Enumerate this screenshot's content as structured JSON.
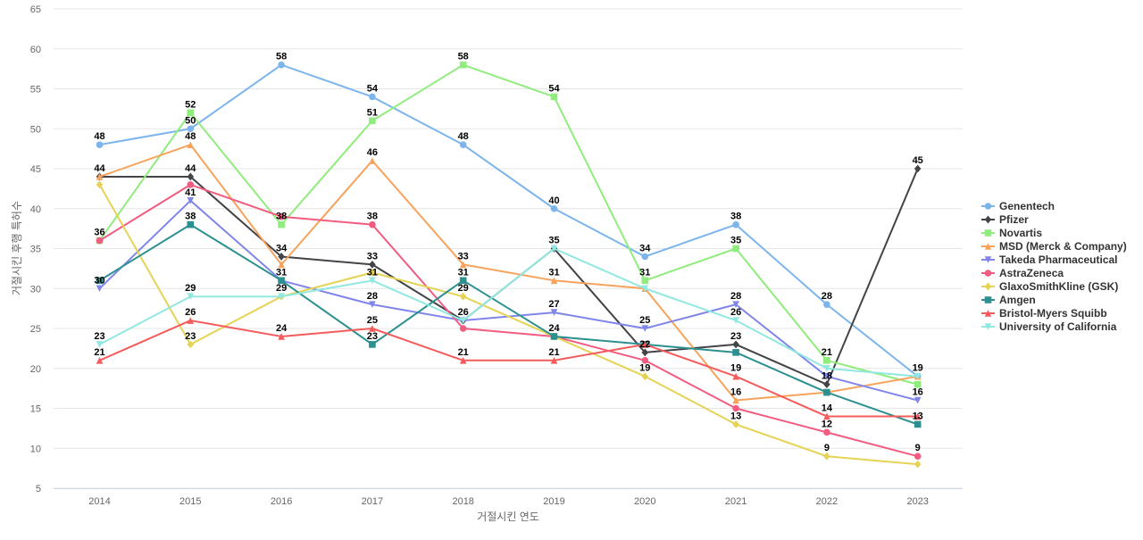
{
  "chart_data": {
    "type": "line",
    "title": "",
    "xlabel": "거절시킨 연도",
    "ylabel": "거절시킨 후행 특허수",
    "x": [
      "2014",
      "2015",
      "2016",
      "2017",
      "2018",
      "2019",
      "2020",
      "2021",
      "2022",
      "2023"
    ],
    "ylim": [
      5,
      65
    ],
    "yticks": [
      5,
      10,
      15,
      20,
      25,
      30,
      35,
      40,
      45,
      50,
      55,
      60,
      65
    ],
    "grid": true,
    "legend_position": "right",
    "series": [
      {
        "name": "Genentech",
        "color": "#7cb5ec",
        "marker": "circle",
        "values": [
          48,
          50,
          58,
          54,
          48,
          40,
          34,
          38,
          28,
          19
        ]
      },
      {
        "name": "Pfizer",
        "color": "#434348",
        "marker": "diamond",
        "values": [
          44,
          44,
          34,
          33,
          26,
          35,
          22,
          23,
          18,
          45
        ]
      },
      {
        "name": "Novartis",
        "color": "#90ed7d",
        "marker": "square",
        "values": [
          36,
          52,
          38,
          51,
          58,
          54,
          31,
          35,
          21,
          18
        ]
      },
      {
        "name": "MSD (Merck & Company)",
        "color": "#f7a35c",
        "marker": "triangle",
        "values": [
          44,
          48,
          33,
          46,
          33,
          31,
          30,
          16,
          17,
          19
        ]
      },
      {
        "name": "Takeda Pharmaceutical",
        "color": "#8085e9",
        "marker": "triangle-down",
        "values": [
          30,
          41,
          31,
          28,
          26,
          27,
          25,
          28,
          19,
          16
        ]
      },
      {
        "name": "AstraZeneca",
        "color": "#f15c80",
        "marker": "circle",
        "values": [
          36,
          43,
          39,
          38,
          25,
          24,
          21,
          15,
          12,
          9
        ]
      },
      {
        "name": "GlaxoSmithKline (GSK)",
        "color": "#e4d354",
        "marker": "diamond",
        "values": [
          43,
          23,
          29,
          32,
          29,
          24,
          19,
          13,
          9,
          8
        ]
      },
      {
        "name": "Amgen",
        "color": "#2b908f",
        "marker": "square",
        "values": [
          31,
          38,
          31,
          23,
          31,
          24,
          23,
          22,
          17,
          13
        ]
      },
      {
        "name": "Bristol-Myers Squibb",
        "color": "#f45b5b",
        "marker": "triangle",
        "values": [
          21,
          26,
          24,
          25,
          21,
          21,
          23,
          19,
          14,
          14
        ]
      },
      {
        "name": "University of California",
        "color": "#91e8e1",
        "marker": "triangle-down",
        "values": [
          23,
          29,
          29,
          31,
          26,
          35,
          30,
          26,
          20,
          19
        ]
      }
    ],
    "data_labels": [
      {
        "x": "2014",
        "y": 48,
        "text": "48"
      },
      {
        "x": "2014",
        "y": 44,
        "text": "44"
      },
      {
        "x": "2014",
        "y": 36,
        "text": "36"
      },
      {
        "x": "2014",
        "y": 30,
        "text": "30"
      },
      {
        "x": "2014",
        "y": 23,
        "text": "23"
      },
      {
        "x": "2014",
        "y": 21,
        "text": "21"
      },
      {
        "x": "2015",
        "y": 52,
        "text": "52"
      },
      {
        "x": "2015",
        "y": 50,
        "text": "50"
      },
      {
        "x": "2015",
        "y": 48,
        "text": "48"
      },
      {
        "x": "2015",
        "y": 44,
        "text": "44"
      },
      {
        "x": "2015",
        "y": 41,
        "text": "41"
      },
      {
        "x": "2015",
        "y": 38,
        "text": "38"
      },
      {
        "x": "2015",
        "y": 29,
        "text": "29"
      },
      {
        "x": "2015",
        "y": 26,
        "text": "26"
      },
      {
        "x": "2015",
        "y": 23,
        "text": "23"
      },
      {
        "x": "2016",
        "y": 58,
        "text": "58"
      },
      {
        "x": "2016",
        "y": 38,
        "text": "38"
      },
      {
        "x": "2016",
        "y": 34,
        "text": "34"
      },
      {
        "x": "2016",
        "y": 31,
        "text": "31"
      },
      {
        "x": "2016",
        "y": 29,
        "text": "29"
      },
      {
        "x": "2016",
        "y": 24,
        "text": "24"
      },
      {
        "x": "2017",
        "y": 54,
        "text": "54"
      },
      {
        "x": "2017",
        "y": 51,
        "text": "51"
      },
      {
        "x": "2017",
        "y": 46,
        "text": "46"
      },
      {
        "x": "2017",
        "y": 38,
        "text": "38"
      },
      {
        "x": "2017",
        "y": 33,
        "text": "33"
      },
      {
        "x": "2017",
        "y": 31,
        "text": "31"
      },
      {
        "x": "2017",
        "y": 28,
        "text": "28"
      },
      {
        "x": "2017",
        "y": 25,
        "text": "25"
      },
      {
        "x": "2017",
        "y": 23,
        "text": "23"
      },
      {
        "x": "2018",
        "y": 58,
        "text": "58"
      },
      {
        "x": "2018",
        "y": 48,
        "text": "48"
      },
      {
        "x": "2018",
        "y": 33,
        "text": "33"
      },
      {
        "x": "2018",
        "y": 31,
        "text": "31"
      },
      {
        "x": "2018",
        "y": 29,
        "text": "29"
      },
      {
        "x": "2018",
        "y": 26,
        "text": "26"
      },
      {
        "x": "2018",
        "y": 21,
        "text": "21"
      },
      {
        "x": "2019",
        "y": 54,
        "text": "54"
      },
      {
        "x": "2019",
        "y": 40,
        "text": "40"
      },
      {
        "x": "2019",
        "y": 35,
        "text": "35"
      },
      {
        "x": "2019",
        "y": 31,
        "text": "31"
      },
      {
        "x": "2019",
        "y": 27,
        "text": "27"
      },
      {
        "x": "2019",
        "y": 24,
        "text": "24"
      },
      {
        "x": "2019",
        "y": 21,
        "text": "21"
      },
      {
        "x": "2020",
        "y": 34,
        "text": "34"
      },
      {
        "x": "2020",
        "y": 31,
        "text": "31"
      },
      {
        "x": "2020",
        "y": 25,
        "text": "25"
      },
      {
        "x": "2020",
        "y": 22,
        "text": "22"
      },
      {
        "x": "2020",
        "y": 19,
        "text": "19"
      },
      {
        "x": "2021",
        "y": 38,
        "text": "38"
      },
      {
        "x": "2021",
        "y": 35,
        "text": "35"
      },
      {
        "x": "2021",
        "y": 28,
        "text": "28"
      },
      {
        "x": "2021",
        "y": 26,
        "text": "26"
      },
      {
        "x": "2021",
        "y": 23,
        "text": "23"
      },
      {
        "x": "2021",
        "y": 19,
        "text": "19"
      },
      {
        "x": "2021",
        "y": 16,
        "text": "16"
      },
      {
        "x": "2021",
        "y": 13,
        "text": "13"
      },
      {
        "x": "2022",
        "y": 28,
        "text": "28"
      },
      {
        "x": "2022",
        "y": 21,
        "text": "21"
      },
      {
        "x": "2022",
        "y": 18,
        "text": "18"
      },
      {
        "x": "2022",
        "y": 14,
        "text": "14"
      },
      {
        "x": "2022",
        "y": 12,
        "text": "12"
      },
      {
        "x": "2022",
        "y": 9,
        "text": "9"
      },
      {
        "x": "2023",
        "y": 45,
        "text": "45"
      },
      {
        "x": "2023",
        "y": 19,
        "text": "19"
      },
      {
        "x": "2023",
        "y": 16,
        "text": "16"
      },
      {
        "x": "2023",
        "y": 13,
        "text": "13"
      },
      {
        "x": "2023",
        "y": 9,
        "text": "9"
      }
    ]
  }
}
